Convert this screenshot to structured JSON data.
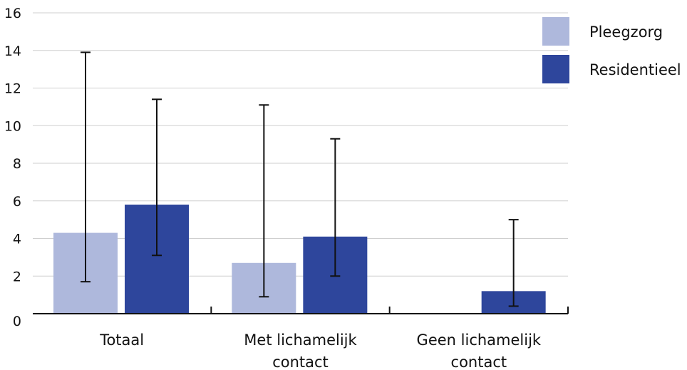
{
  "chart_data": {
    "type": "bar",
    "categories": [
      [
        "Totaal"
      ],
      [
        "Met lichamelijk",
        "contact"
      ],
      [
        "Geen lichamelijk",
        "contact"
      ]
    ],
    "series": [
      {
        "name": "Pleegzorg",
        "color": "#aeb8dc",
        "values": [
          4.3,
          2.7,
          0
        ],
        "error_low": [
          1.7,
          0.9,
          null
        ],
        "error_high": [
          13.9,
          11.1,
          null
        ]
      },
      {
        "name": "Residentieel",
        "color": "#2e469c",
        "values": [
          5.8,
          4.1,
          1.2
        ],
        "error_low": [
          3.1,
          2.0,
          0.4
        ],
        "error_high": [
          11.4,
          9.3,
          5.0
        ]
      }
    ],
    "ylim": [
      0,
      16
    ],
    "yticks": [
      "0",
      "2",
      "4",
      "6",
      "8",
      "10",
      "12",
      "14",
      "16"
    ],
    "grid": true,
    "legend_position": "top-right"
  }
}
